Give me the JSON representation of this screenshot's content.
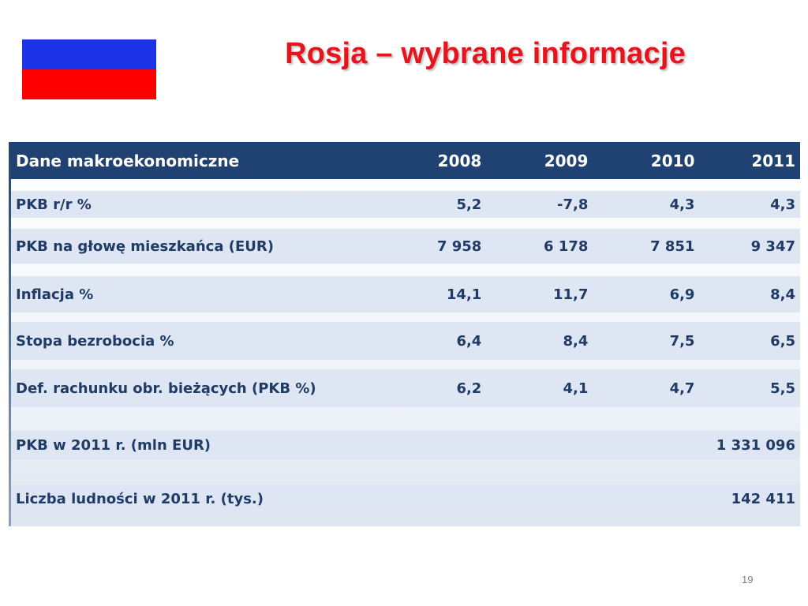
{
  "slide": {
    "title": "Rosja – wybrane informacje",
    "page_number": "19",
    "flag": {
      "country": "Russia",
      "colors": [
        "#ffffff",
        "#1c33e8",
        "#ff0000"
      ]
    }
  },
  "table": {
    "header": {
      "label": "Dane makroekonomiczne",
      "years": [
        "2008",
        "2009",
        "2010",
        "2011"
      ]
    },
    "rows": [
      {
        "label": "PKB r/r %",
        "values": [
          "5,2",
          "-7,8",
          "4,3",
          "4,3"
        ]
      },
      {
        "label": "PKB na głowę mieszkańca (EUR)",
        "values": [
          "7 958",
          "6 178",
          "7 851",
          "9 347"
        ]
      },
      {
        "label": "Inflacja %",
        "values": [
          "14,1",
          "11,7",
          "6,9",
          "8,4"
        ]
      },
      {
        "label": "Stopa bezrobocia %",
        "values": [
          "6,4",
          "8,4",
          "7,5",
          "6,5"
        ]
      },
      {
        "label": "Def. rachunku obr. bieżących (PKB %)",
        "values": [
          "6,2",
          "4,1",
          "4,7",
          "5,5"
        ]
      }
    ],
    "summary": [
      {
        "label": "PKB w 2011 r. (mln EUR)",
        "value": "1 331 096"
      },
      {
        "label": "Liczba ludności w 2011 r. (tys.)",
        "value": "142 411"
      }
    ],
    "colors": {
      "header_bg": "#1f4273",
      "band_bg": "#dde6f2",
      "text": "#1f3b66"
    }
  }
}
